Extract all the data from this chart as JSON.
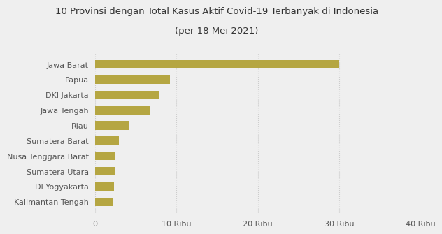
{
  "title_line1": "10 Provinsi dengan Total Kasus Aktif Covid-19 Terbanyak di Indonesia",
  "title_line2": "(per 18 Mei 2021)",
  "provinces": [
    "Kalimantan Tengah",
    "DI Yogyakarta",
    "Sumatera Utara",
    "Nusa Tenggara Barat",
    "Sumatera Barat",
    "Riau",
    "Jawa Tengah",
    "DKI Jakarta",
    "Papua",
    "Jawa Barat"
  ],
  "values": [
    2200,
    2300,
    2400,
    2500,
    2900,
    4200,
    6800,
    7800,
    9200,
    30000
  ],
  "bar_color": "#b5a642",
  "background_color": "#efefef",
  "xlim": [
    0,
    40000
  ],
  "xtick_values": [
    0,
    10000,
    20000,
    30000,
    40000
  ],
  "xtick_labels": [
    "0",
    "10 Ribu",
    "20 Ribu",
    "30 Ribu",
    "40 Ribu"
  ],
  "title_fontsize": 9.5,
  "label_fontsize": 8,
  "tick_fontsize": 8,
  "bar_height": 0.55
}
